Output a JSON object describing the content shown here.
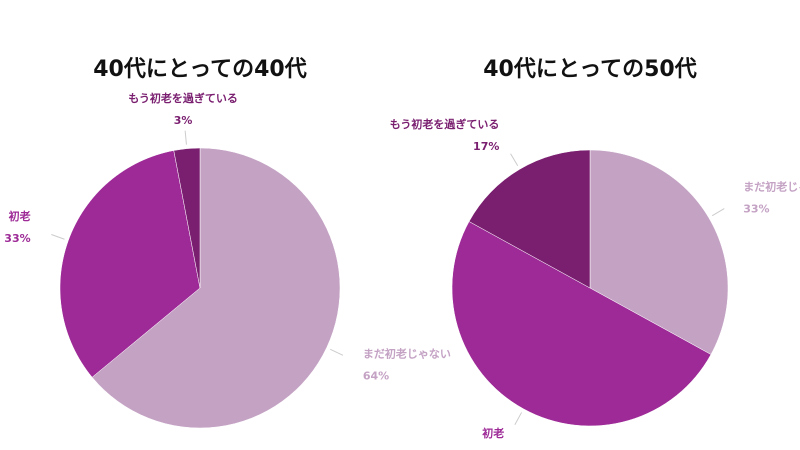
{
  "chart_data": [
    {
      "type": "pie",
      "title": "40代にとっての40代",
      "categories": [
        "まだ初老じゃない",
        "初老",
        "もう初老を過ぎている"
      ],
      "values": [
        64,
        33,
        3
      ],
      "value_labels": [
        "64%",
        "33%",
        "3%"
      ],
      "colors": [
        "#c4a2c4",
        "#9d2a97",
        "#7a1f70"
      ]
    },
    {
      "type": "pie",
      "title": "40代にとっての50代",
      "categories": [
        "まだ初老じゃない",
        "初老",
        "もう初老を過ぎている"
      ],
      "values": [
        33,
        50,
        17
      ],
      "value_labels": [
        "33%",
        "50%",
        "17%"
      ],
      "colors": [
        "#c4a2c4",
        "#9d2a97",
        "#7a1f70"
      ]
    }
  ]
}
